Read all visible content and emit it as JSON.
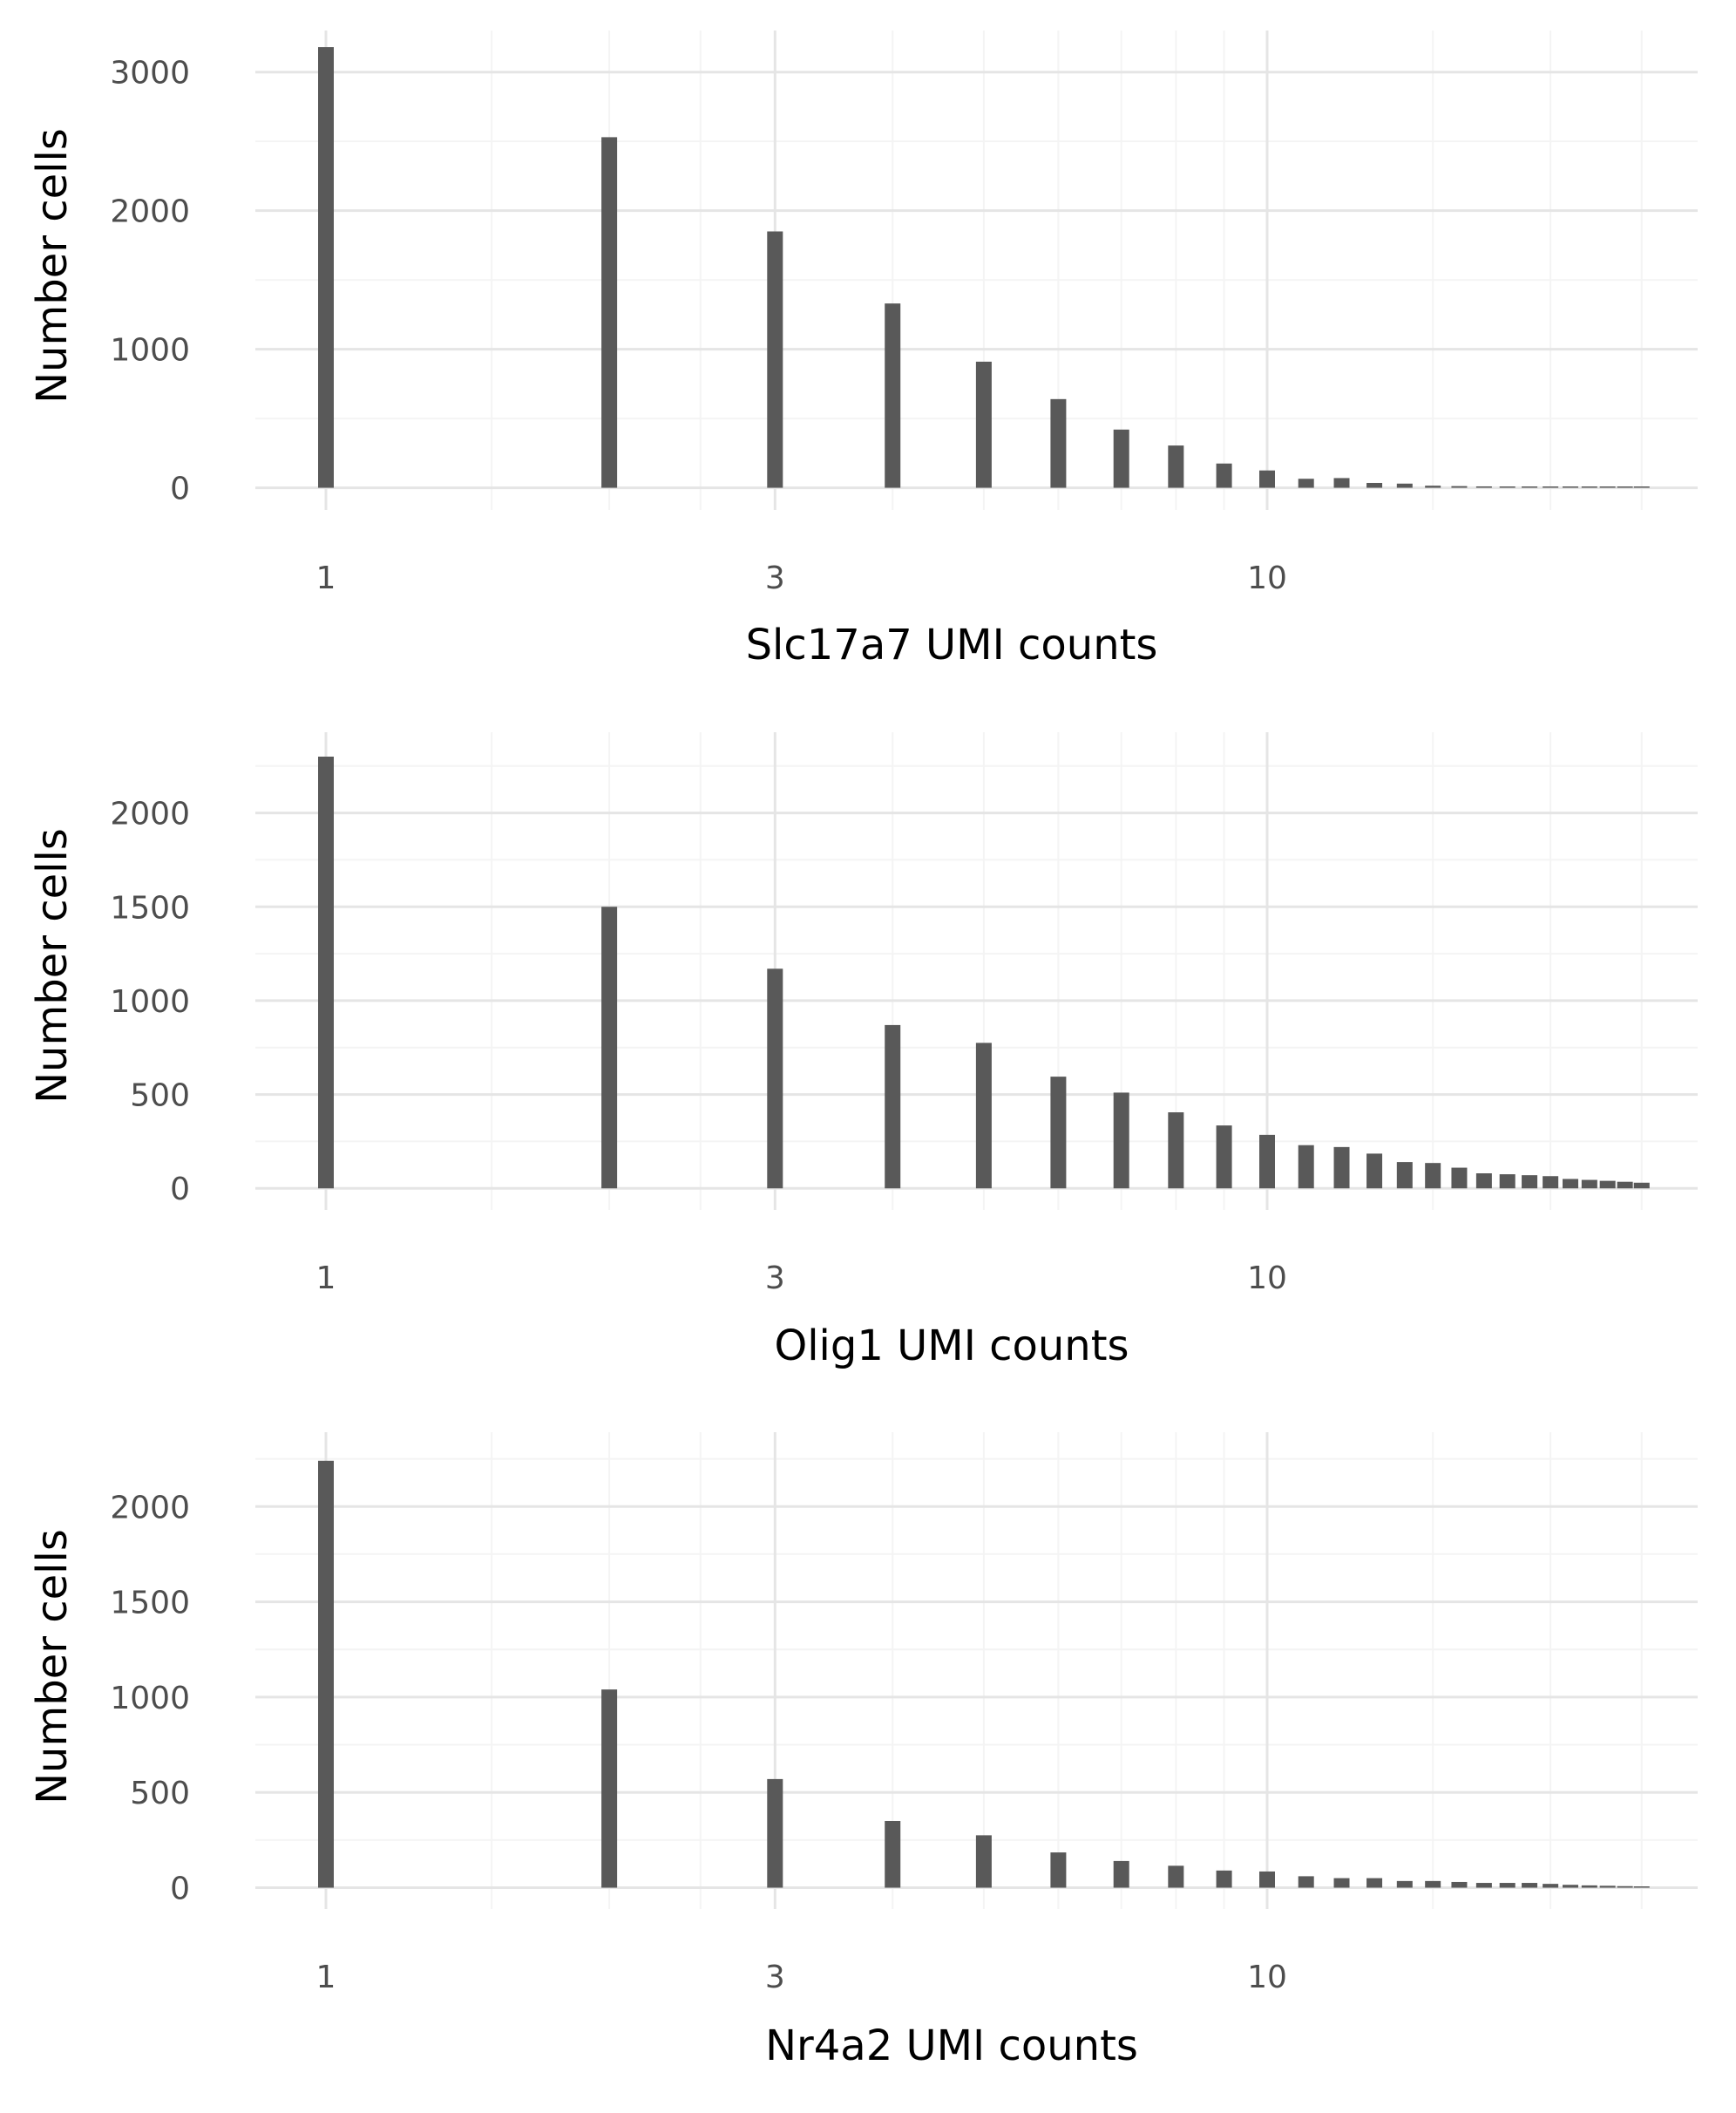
{
  "chart_data": [
    {
      "type": "bar",
      "title": "",
      "xlabel": "Slc17a7 UMI counts",
      "ylabel": "Number cells",
      "x_scale": "log10",
      "x_ticks": [
        1,
        3,
        10
      ],
      "y_ticks": [
        0,
        1000,
        2000,
        3000
      ],
      "ylim": [
        -160,
        3300
      ],
      "x": [
        1,
        2,
        3,
        4,
        5,
        6,
        7,
        8,
        9,
        10,
        11,
        12,
        13,
        14,
        15,
        16,
        17,
        18,
        19,
        20,
        21,
        22,
        23,
        24,
        25
      ],
      "values": [
        3180,
        2530,
        1850,
        1330,
        910,
        640,
        420,
        305,
        175,
        125,
        65,
        70,
        35,
        30,
        15,
        12,
        10,
        8,
        6,
        5,
        5,
        4,
        3,
        3,
        2
      ]
    },
    {
      "type": "bar",
      "title": "",
      "xlabel": "Olig1 UMI counts",
      "ylabel": "Number cells",
      "x_scale": "log10",
      "x_ticks": [
        1,
        3,
        10
      ],
      "y_ticks": [
        0,
        500,
        1000,
        1500,
        2000
      ],
      "ylim": [
        -115,
        2430
      ],
      "x": [
        1,
        2,
        3,
        4,
        5,
        6,
        7,
        8,
        9,
        10,
        11,
        12,
        13,
        14,
        15,
        16,
        17,
        18,
        19,
        20,
        21,
        22,
        23,
        24,
        25
      ],
      "values": [
        2300,
        1500,
        1170,
        870,
        775,
        595,
        510,
        405,
        335,
        285,
        230,
        220,
        185,
        140,
        135,
        110,
        80,
        75,
        70,
        65,
        50,
        45,
        40,
        35,
        30
      ]
    },
    {
      "type": "bar",
      "title": "",
      "xlabel": "Nr4a2 UMI counts",
      "ylabel": "Number cells",
      "x_scale": "log10",
      "x_ticks": [
        1,
        3,
        10
      ],
      "y_ticks": [
        0,
        500,
        1000,
        1500,
        2000
      ],
      "ylim": [
        -112,
        2390
      ],
      "x": [
        1,
        2,
        3,
        4,
        5,
        6,
        7,
        8,
        9,
        10,
        11,
        12,
        13,
        14,
        15,
        16,
        17,
        18,
        19,
        20,
        21,
        22,
        23,
        24,
        25
      ],
      "values": [
        2240,
        1040,
        570,
        350,
        275,
        185,
        140,
        115,
        90,
        85,
        60,
        50,
        50,
        35,
        35,
        30,
        25,
        25,
        25,
        20,
        15,
        12,
        10,
        8,
        5
      ]
    }
  ]
}
